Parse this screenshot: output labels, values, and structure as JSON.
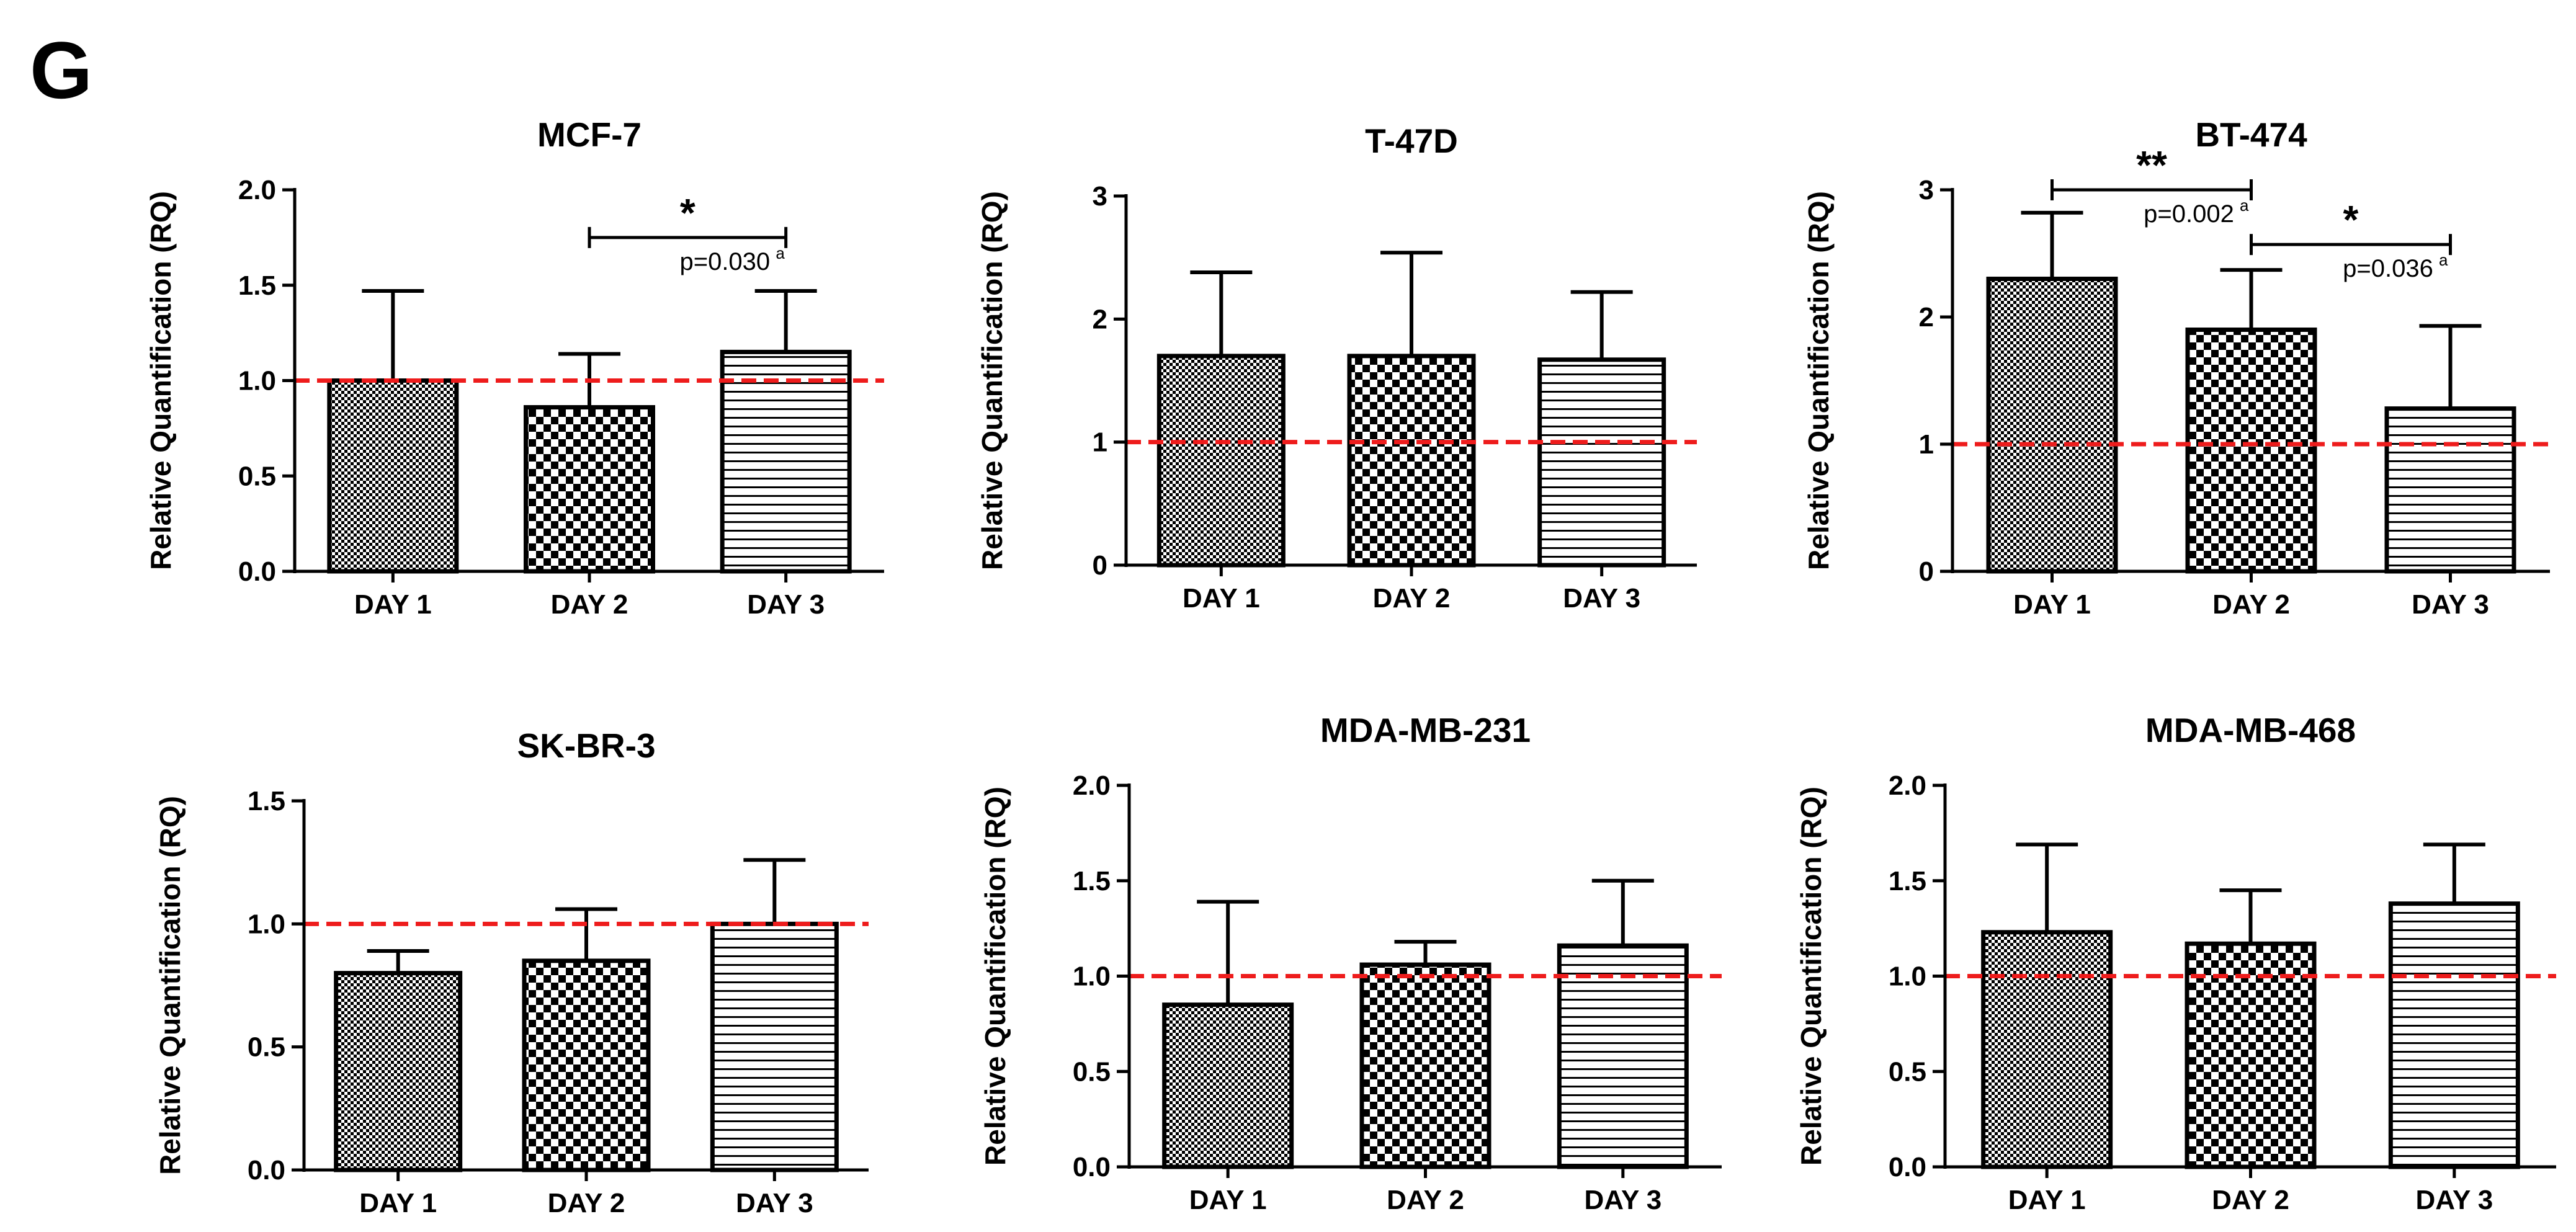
{
  "figure": {
    "panel_label": "G"
  },
  "colors": {
    "reference_line": "#ee1c1c",
    "bar_stroke": "#000000",
    "bar_fill": "#ffffff"
  },
  "chart_data": [
    {
      "type": "bar",
      "title": "MCF-7",
      "xlabel": "",
      "ylabel": "Relative Quantification (RQ)",
      "categories": [
        "DAY 1",
        "DAY 2",
        "DAY 3"
      ],
      "values": [
        1.0,
        0.86,
        1.15
      ],
      "error_upper": [
        0.47,
        0.28,
        0.32
      ],
      "patterns": [
        "fine-check",
        "coarse-check",
        "horizontal-lines"
      ],
      "ylim": [
        0,
        2.0
      ],
      "yticks": [
        "0.0",
        "0.5",
        "1.0",
        "1.5",
        "2.0"
      ],
      "reference_line": 1.0,
      "grid": false,
      "legend": "none",
      "annotations": [
        {
          "from": "DAY 2",
          "to": "DAY 3",
          "y": 1.75,
          "label": "*",
          "p_label": "p=0.030",
          "p_sup": "a",
          "p_pos": "below"
        }
      ]
    },
    {
      "type": "bar",
      "title": "T-47D",
      "xlabel": "",
      "ylabel": "Relative Quantification (RQ)",
      "categories": [
        "DAY 1",
        "DAY 2",
        "DAY 3"
      ],
      "values": [
        1.7,
        1.7,
        1.67
      ],
      "error_upper": [
        0.68,
        0.84,
        0.55
      ],
      "patterns": [
        "fine-check",
        "coarse-check",
        "horizontal-lines"
      ],
      "ylim": [
        0,
        3
      ],
      "yticks": [
        "0",
        "1",
        "2",
        "3"
      ],
      "reference_line": 1.0,
      "grid": false,
      "legend": "none",
      "annotations": []
    },
    {
      "type": "bar",
      "title": "BT-474",
      "xlabel": "",
      "ylabel": "Relative Quantification (RQ)",
      "categories": [
        "DAY 1",
        "DAY 2",
        "DAY 3"
      ],
      "values": [
        2.3,
        1.9,
        1.28
      ],
      "error_upper": [
        0.52,
        0.47,
        0.65
      ],
      "patterns": [
        "fine-check",
        "coarse-check",
        "horizontal-lines"
      ],
      "ylim": [
        0,
        3
      ],
      "yticks": [
        "0",
        "1",
        "2",
        "3"
      ],
      "reference_line": 1.0,
      "grid": false,
      "legend": "none",
      "annotations": [
        {
          "from": "DAY 1",
          "to": "DAY 2",
          "y": 3.0,
          "label": "**",
          "p_label": "p=0.002",
          "p_sup": "a",
          "p_pos": "below"
        },
        {
          "from": "DAY 2",
          "to": "DAY 3",
          "y": 2.57,
          "label": "*",
          "p_label": "p=0.036",
          "p_sup": "a",
          "p_pos": "below"
        }
      ]
    },
    {
      "type": "bar",
      "title": "SK-BR-3",
      "xlabel": "",
      "ylabel": "Relative Quantification (RQ)",
      "categories": [
        "DAY 1",
        "DAY 2",
        "DAY 3"
      ],
      "values": [
        0.8,
        0.85,
        1.0
      ],
      "error_upper": [
        0.09,
        0.21,
        0.26
      ],
      "patterns": [
        "fine-check",
        "coarse-check",
        "horizontal-lines"
      ],
      "ylim": [
        0,
        1.5
      ],
      "yticks": [
        "0.0",
        "0.5",
        "1.0",
        "1.5"
      ],
      "reference_line": 1.0,
      "grid": false,
      "legend": "none",
      "annotations": []
    },
    {
      "type": "bar",
      "title": "MDA-MB-231",
      "xlabel": "",
      "ylabel": "Relative Quantification (RQ)",
      "categories": [
        "DAY 1",
        "DAY 2",
        "DAY 3"
      ],
      "values": [
        0.85,
        1.06,
        1.16
      ],
      "error_upper": [
        0.54,
        0.12,
        0.34
      ],
      "patterns": [
        "fine-check",
        "coarse-check",
        "horizontal-lines"
      ],
      "ylim": [
        0,
        2.0
      ],
      "yticks": [
        "0.0",
        "0.5",
        "1.0",
        "1.5",
        "2.0"
      ],
      "reference_line": 1.0,
      "grid": false,
      "legend": "none",
      "annotations": []
    },
    {
      "type": "bar",
      "title": "MDA-MB-468",
      "xlabel": "",
      "ylabel": "Relative Quantification (RQ)",
      "categories": [
        "DAY 1",
        "DAY 2",
        "DAY 3"
      ],
      "values": [
        1.23,
        1.17,
        1.38
      ],
      "error_upper": [
        0.46,
        0.28,
        0.31
      ],
      "patterns": [
        "fine-check",
        "coarse-check",
        "horizontal-lines"
      ],
      "ylim": [
        0,
        2.0
      ],
      "yticks": [
        "0.0",
        "0.5",
        "1.0",
        "1.5",
        "2.0"
      ],
      "reference_line": 1.0,
      "grid": false,
      "legend": "none",
      "annotations": []
    }
  ]
}
